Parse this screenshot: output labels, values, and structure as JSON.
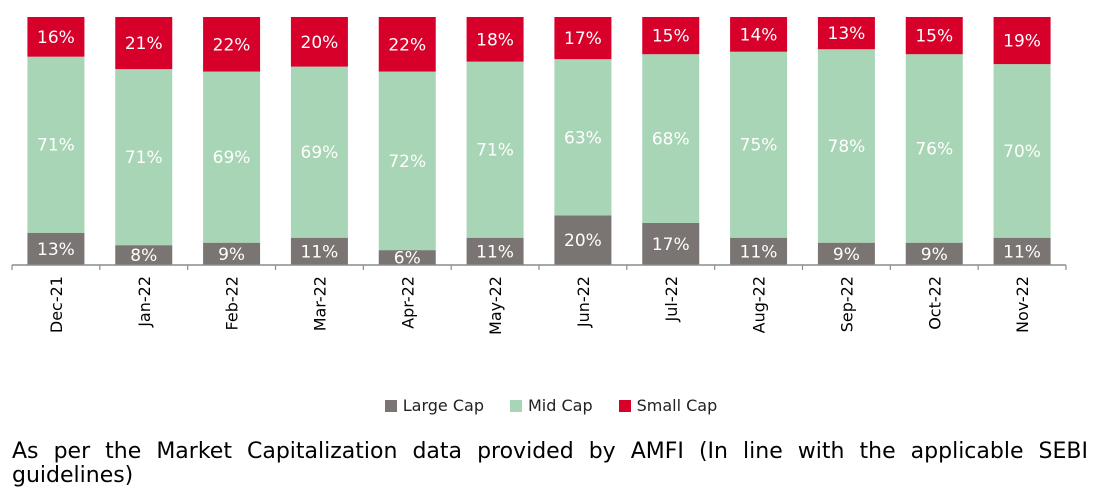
{
  "chart_data": {
    "type": "bar",
    "stacked": true,
    "categories": [
      "Dec-21",
      "Jan-22",
      "Feb-22",
      "Mar-22",
      "Apr-22",
      "May-22",
      "Jun-22",
      "Jul-22",
      "Aug-22",
      "Sep-22",
      "Oct-22",
      "Nov-22"
    ],
    "series": [
      {
        "name": "Large Cap",
        "color": "#7a7573",
        "values": [
          13,
          8,
          9,
          11,
          6,
          11,
          20,
          17,
          11,
          9,
          9,
          11
        ]
      },
      {
        "name": "Mid Cap",
        "color": "#a8d5b5",
        "values": [
          71,
          71,
          69,
          69,
          72,
          71,
          63,
          68,
          75,
          78,
          76,
          70
        ]
      },
      {
        "name": "Small Cap",
        "color": "#d6002a",
        "values": [
          16,
          21,
          22,
          20,
          22,
          18,
          17,
          15,
          14,
          13,
          15,
          19
        ]
      }
    ],
    "label_colors": {
      "Large Cap": "#ffffff",
      "Mid Cap": "#ffffff",
      "Small Cap": "#ffffff"
    },
    "legend_position": "bottom"
  },
  "footnote": "As per the Market Capitalization data provided by AMFI (In line with the applicable SEBI guidelines)"
}
